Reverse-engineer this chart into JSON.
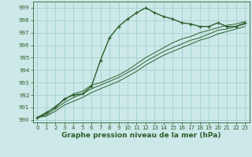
{
  "xlabel": "Graphe pression niveau de la mer (hPa)",
  "bg_color": "#cce8e8",
  "grid_color": "#99cccc",
  "line_color": "#2d5f2d",
  "ylim": [
    989.8,
    999.5
  ],
  "xlim": [
    -0.5,
    23.5
  ],
  "yticks": [
    990,
    991,
    992,
    993,
    994,
    995,
    996,
    997,
    998,
    999
  ],
  "xticks": [
    0,
    1,
    2,
    3,
    4,
    5,
    6,
    7,
    8,
    9,
    10,
    11,
    12,
    13,
    14,
    15,
    16,
    17,
    18,
    19,
    20,
    21,
    22,
    23
  ],
  "main_line": [
    990.2,
    990.6,
    991.0,
    991.7,
    992.0,
    992.1,
    992.7,
    994.8,
    996.6,
    997.5,
    998.1,
    998.6,
    999.0,
    998.6,
    998.3,
    998.1,
    997.8,
    997.7,
    997.5,
    997.5,
    997.8,
    997.5,
    997.5,
    997.8
  ],
  "ref_line1": [
    990.2,
    990.5,
    991.1,
    991.6,
    992.1,
    992.3,
    992.8,
    993.0,
    993.3,
    993.6,
    994.0,
    994.5,
    995.0,
    995.4,
    995.8,
    996.2,
    996.5,
    996.7,
    997.0,
    997.2,
    997.4,
    997.6,
    997.7,
    997.9
  ],
  "ref_line2": [
    990.2,
    990.4,
    990.9,
    991.4,
    991.8,
    992.1,
    992.5,
    992.8,
    993.1,
    993.4,
    993.8,
    994.2,
    994.7,
    995.1,
    995.5,
    995.8,
    996.1,
    996.4,
    996.6,
    996.9,
    997.2,
    997.3,
    997.5,
    997.7
  ],
  "ref_line3": [
    990.2,
    990.3,
    990.7,
    991.2,
    991.5,
    991.8,
    992.2,
    992.5,
    992.8,
    993.1,
    993.5,
    993.9,
    994.4,
    994.8,
    995.2,
    995.5,
    995.8,
    996.1,
    996.4,
    996.6,
    996.9,
    997.1,
    997.3,
    997.5
  ]
}
